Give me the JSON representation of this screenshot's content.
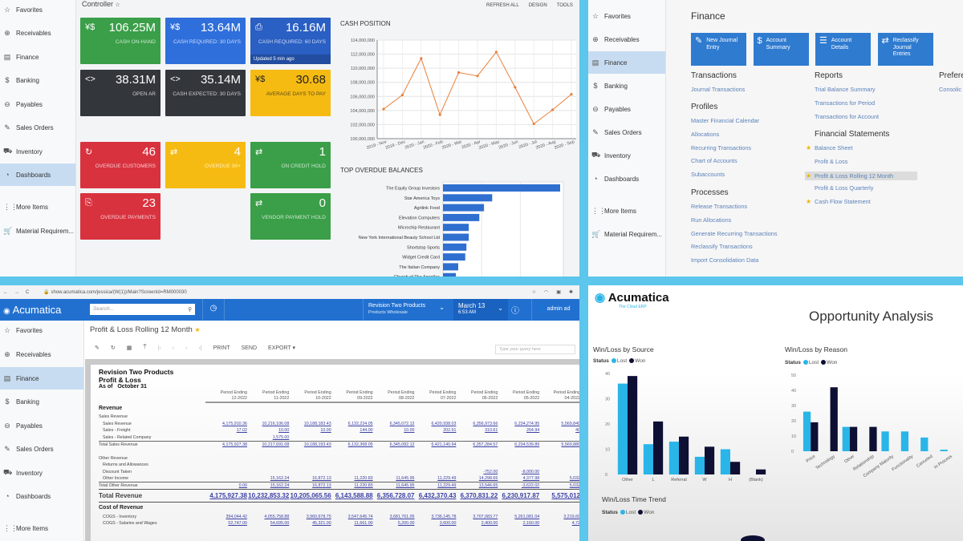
{
  "sidebar_top": [
    "Favorites",
    "Receivables",
    "Finance",
    "Banking",
    "Payables",
    "Sales Orders",
    "Inventory",
    "Dashboards",
    "More Items",
    "Material Requirem..."
  ],
  "sidebar_icons": [
    "☆",
    "⊕",
    "▤",
    "$",
    "⊖",
    "✎",
    "⛟",
    "◔",
    "⋮⋮",
    "🛒"
  ],
  "controller": {
    "title": "Controller",
    "star": "☆",
    "toolbar": [
      "REFRESH ALL",
      "DESIGN",
      "TOOLS"
    ],
    "active_sidebar": "Dashboards",
    "tiles": [
      {
        "icon": "¥$",
        "value": "106.25M",
        "label": "CASH ON-HAND",
        "color": "#3a9f48"
      },
      {
        "icon": "¥$",
        "value": "13.64M",
        "label": "CASH REQUIRED: 30 DAYS",
        "color": "#2f6fdc"
      },
      {
        "icon": "⎙",
        "value": "16.16M",
        "label": "CASH REQUIRED: 60 DAYS",
        "color": "#2a5fc4",
        "updated": "Updated 5 min ago"
      },
      {
        "icon": "<>",
        "value": "38.31M",
        "label": "OPEN AR",
        "color": "#33363b"
      },
      {
        "icon": "<>",
        "value": "35.14M",
        "label": "CASH EXPECTED: 30 DAYS",
        "color": "#33363b"
      },
      {
        "icon": "¥$",
        "value": "30.68",
        "label": "AVERAGE DAYS TO PAY",
        "color": "#f6bb12",
        "dark": true
      },
      {
        "icon": "↻",
        "value": "46",
        "label": "OVERDUE CUSTOMERS",
        "color": "#d9323f"
      },
      {
        "icon": "⇄",
        "value": "4",
        "label": "OVERDUE 90+",
        "color": "#f6bb12"
      },
      {
        "icon": "⇄",
        "value": "1",
        "label": "ON CREDIT HOLD",
        "color": "#3a9f48"
      },
      {
        "icon": "⎘",
        "value": "23",
        "label": "OVERDUE PAYMENTS",
        "color": "#d9323f"
      },
      {
        "icon": "⇄",
        "value": "0",
        "label": "VENDOR PAYMENT HOLD",
        "color": "#3a9f48"
      }
    ]
  },
  "chart_data": [
    {
      "type": "line",
      "title": "CASH POSITION",
      "categories": [
        "2019 - Nov",
        "2019 - Dec",
        "2020 - Jan",
        "2020 - Feb",
        "2020 - Mar",
        "2020 - Apr",
        "2020 - May",
        "2020 - Jun",
        "2020 - Jul",
        "2020 - Aug",
        "2020 - Sep"
      ],
      "values": [
        104200000,
        106200000,
        111400000,
        103400000,
        109400000,
        108900000,
        112300000,
        107300000,
        102100000,
        104100000,
        106300000
      ],
      "ylim": [
        100000000,
        114000000
      ],
      "yticks": [
        "100,000,000",
        "102,000,000",
        "104,000,000",
        "106,000,000",
        "108,000,000",
        "110,000,000",
        "112,000,000",
        "114,000,000"
      ],
      "grid": true,
      "color": "#e8803a"
    },
    {
      "type": "bar",
      "orientation": "horizontal",
      "title": "TOP OVERDUE BALANCES",
      "categories": [
        "The Equity Group Investors",
        "Star America Toys",
        "Agrilink Food",
        "Elevation Computers",
        "Microchip Restaurant",
        "New York International Beauty School Ltd",
        "Shortstop Sports",
        "Widget Credit Card",
        "The Italian Company",
        "Church of The Apostles"
      ],
      "values": [
        100,
        42,
        35,
        31,
        22,
        22,
        20,
        19,
        13,
        11
      ],
      "color": "#2f6fd0",
      "grid": true
    },
    {
      "type": "bar",
      "title": "Win/Loss by Source",
      "legend_title": "Status",
      "categories": [
        "Other",
        "L",
        "Referral",
        "W",
        "H",
        "(Blank)"
      ],
      "series": [
        {
          "name": "Lost",
          "values": [
            36,
            12,
            13,
            7,
            10,
            0
          ],
          "color": "#29b5e8"
        },
        {
          "name": "Won",
          "values": [
            39,
            21,
            15,
            11,
            5,
            2
          ],
          "color": "#0d0f33"
        }
      ],
      "ylim": [
        0,
        40
      ],
      "yticks": [
        "0",
        "10",
        "20",
        "30",
        "40"
      ]
    },
    {
      "type": "bar",
      "title": "Win/Loss by Reason",
      "legend_title": "Status",
      "categories": [
        "Price",
        "Technology",
        "Other",
        "Relationship",
        "Company Maturity",
        "Functionality",
        "Canceled",
        "In Process"
      ],
      "series": [
        {
          "name": "Lost",
          "values": [
            26,
            0,
            16,
            0,
            13,
            13,
            9,
            1
          ],
          "color": "#29b5e8"
        },
        {
          "name": "Won",
          "values": [
            19,
            42,
            16,
            16,
            0,
            0,
            0,
            0
          ],
          "color": "#0d0f33"
        }
      ],
      "ylim": [
        0,
        50
      ],
      "yticks": [
        "0",
        "10",
        "20",
        "30",
        "40",
        "50"
      ]
    }
  ],
  "finance": {
    "title": "Finance",
    "buttons": [
      {
        "icon": "✎",
        "label": "New Journal Entry"
      },
      {
        "icon": "$",
        "label": "Account Summary"
      },
      {
        "icon": "☰",
        "label": "Account Details"
      },
      {
        "icon": "⇄",
        "label": "Reclassify Journal Entries"
      }
    ],
    "transactions": {
      "heading": "Transactions",
      "items": [
        "Journal Transactions"
      ]
    },
    "profiles": {
      "heading": "Profiles",
      "items": [
        "Master Financial Calendar",
        "Allocations",
        "Recurring Transactions",
        "Chart of Accounts",
        "Subaccounts"
      ]
    },
    "processes": {
      "heading": "Processes",
      "items": [
        "Release Transactions",
        "Run Allocations",
        "Generate Recurring Transactions",
        "Reclassify Transactions",
        "Import Consolidation Data"
      ]
    },
    "reports": {
      "heading": "Reports",
      "items": [
        "Trial Balance Summary",
        "Transactions for Period",
        "Transactions for Account"
      ]
    },
    "statements": {
      "heading": "Financial Statements",
      "items": [
        {
          "label": "Balance Sheet",
          "star": true
        },
        {
          "label": "Profit & Loss",
          "star": false
        },
        {
          "label": "Profit & Loss Rolling 12 Month",
          "star": true,
          "hover": true
        },
        {
          "label": "Profit & Loss Quarterly",
          "star": false
        },
        {
          "label": "Cash Flow Statement",
          "star": true
        }
      ]
    },
    "preferences": {
      "heading": "Prefere",
      "items": [
        "Consolic"
      ]
    }
  },
  "browser": {
    "url": "show.acumatica.com/jessica/(W(1))/Main?ScreenId=RM000030"
  },
  "acumatica": {
    "logo": "Acumatica",
    "search_placeholder": "Search...",
    "company": "Revision Two Products",
    "branch": "Products Wholesale",
    "date": "March 13",
    "time": "6:53 AM",
    "user": "admin ad",
    "page_title": "Profit & Loss Rolling 12 Month",
    "toolbar": [
      "PRINT",
      "SEND",
      "EXPORT ▾"
    ],
    "query_placeholder": "Type your query here"
  },
  "report": {
    "company": "Revision Two Products",
    "name": "Profit & Loss",
    "as_of": "As of   October 31",
    "col_label": "Period Ending",
    "periods": [
      "12-2022",
      "11-2022",
      "10-2022",
      "09-2022",
      "08-2022",
      "07-2022",
      "06-2022",
      "05-2022",
      "04-2022"
    ],
    "rows": [
      {
        "label": "Revenue",
        "type": "hd",
        "values": []
      },
      {
        "label": "Sales Revenue",
        "values": []
      },
      {
        "label": "Sales Revenue",
        "indent": true,
        "values": [
          "4,175,910.36",
          "10,216,106.08",
          "10,188,183.43",
          "6,132,224.05",
          "6,345,072.12",
          "6,420,938.03",
          "6,356,973.66",
          "6,234,274.95",
          "5,569,840"
        ]
      },
      {
        "label": "Sales - Freight",
        "indent": true,
        "values": [
          "17.02",
          "10.00",
          "10.00",
          "144.00",
          "10.00",
          "202.91",
          "310.61",
          "264.94",
          "40"
        ]
      },
      {
        "label": "Sales - Related Company",
        "indent": true,
        "values": [
          "",
          "1,575.00",
          "",
          "",
          "",
          "",
          "",
          "",
          ""
        ]
      },
      {
        "label": "Total Sales Revenue",
        "type": "tot",
        "values": [
          "4,175,927.38",
          "10,217,691.08",
          "10,188,193.43",
          "6,132,368.05",
          "6,345,082.12",
          "6,421,140.94",
          "6,357,284.57",
          "6,234,539.89",
          "5,569,880"
        ]
      },
      {
        "label": "",
        "values": []
      },
      {
        "label": "Other Revenue",
        "values": []
      },
      {
        "label": "Returns and Allowances",
        "indent": true,
        "values": []
      },
      {
        "label": "Discount Taken",
        "indent": true,
        "values": [
          "",
          "",
          "",
          "",
          "",
          "",
          "-752.00",
          "-8,000.00",
          ""
        ]
      },
      {
        "label": "Other Income",
        "indent": true,
        "values": [
          "",
          "15,162.24",
          "16,872.13",
          "11,220.83",
          "11,645.95",
          "11,229.49",
          "14,298.65",
          "4,377.98",
          "5,032"
        ]
      },
      {
        "label": "Total Other Revenue",
        "type": "tot",
        "values": [
          "0.00",
          "15,162.24",
          "16,872.13",
          "11,220.83",
          "11,645.95",
          "11,229.49",
          "13,546.65",
          "-3,622.02",
          "5,032"
        ]
      },
      {
        "label": "Total Revenue",
        "type": "big",
        "values": [
          "4,175,927.38",
          "10,232,853.32",
          "10,205,065.56",
          "6,143,588.88",
          "6,356,728.07",
          "6,432,370.43",
          "6,370,831.22",
          "6,230,917.87",
          "5,575,012"
        ]
      },
      {
        "label": "Cost of Revenue",
        "type": "hd",
        "values": []
      },
      {
        "label": "COGS - Inventory",
        "indent": true,
        "values": [
          "394,044.42",
          "4,055,758.88",
          "3,960,678.75",
          "3,547,645.74",
          "3,681,761.05",
          "3,736,145.78",
          "3,707,083.77",
          "5,261,081.04",
          "3,219,60"
        ]
      },
      {
        "label": "COGS - Salaries and Wages",
        "indent": true,
        "values": [
          "52,747.00",
          "54,695.00",
          "45,321.00",
          "11,661.00",
          "5,200.00",
          "3,600.00",
          "2,400.00",
          "2,160.00",
          "4,72"
        ]
      }
    ]
  },
  "opportunity": {
    "logo": "Acumatica",
    "tagline": "The Cloud ERP",
    "title": "Opportunity Analysis",
    "trend_title": "Win/Loss Time Trend",
    "legend_title": "Status",
    "legend": [
      "Lost",
      "Won"
    ]
  }
}
